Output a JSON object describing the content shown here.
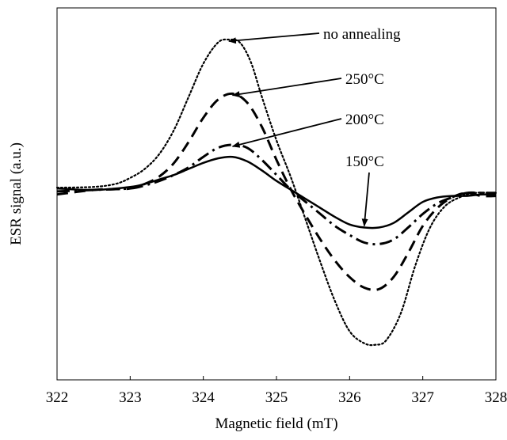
{
  "chart_data": {
    "type": "line",
    "title": "",
    "xlabel": "Magnetic field (mT)",
    "ylabel": "ESR signal (a.u.)",
    "xlim": [
      322,
      328
    ],
    "ylim": [
      -1.0,
      1.0
    ],
    "x_ticks": [
      "322",
      "323",
      "324",
      "325",
      "326",
      "327",
      "328"
    ],
    "y_ticks": [],
    "grid": false,
    "legend": "annotations with arrows (top-right)",
    "series": [
      {
        "name": "no annealing",
        "style": "dotted",
        "x": [
          322.0,
          322.5,
          322.8,
          323.0,
          323.2,
          323.4,
          323.6,
          323.8,
          324.0,
          324.2,
          324.35,
          324.5,
          324.65,
          324.8,
          325.0,
          325.2,
          325.4,
          325.6,
          325.8,
          326.0,
          326.2,
          326.35,
          326.5,
          326.7,
          326.9,
          327.1,
          327.3,
          327.5,
          327.7,
          328.0
        ],
        "y": [
          0.015,
          0.02,
          0.04,
          0.08,
          0.14,
          0.24,
          0.4,
          0.62,
          0.84,
          0.98,
          1.0,
          0.98,
          0.85,
          0.62,
          0.33,
          0.08,
          -0.2,
          -0.48,
          -0.74,
          -0.94,
          -1.02,
          -1.03,
          -1.0,
          -0.82,
          -0.5,
          -0.25,
          -0.11,
          -0.05,
          -0.02,
          -0.02
        ]
      },
      {
        "name": "250°C",
        "style": "dashed",
        "x": [
          322.0,
          322.5,
          322.8,
          323.0,
          323.2,
          323.4,
          323.6,
          323.8,
          324.0,
          324.2,
          324.4,
          324.6,
          324.8,
          325.0,
          325.2,
          325.4,
          325.6,
          325.8,
          326.0,
          326.2,
          326.4,
          326.6,
          326.8,
          327.0,
          327.2,
          327.4,
          327.6,
          327.8,
          328.0
        ],
        "y": [
          -0.03,
          0.0,
          0.005,
          0.01,
          0.04,
          0.09,
          0.18,
          0.32,
          0.48,
          0.6,
          0.64,
          0.58,
          0.42,
          0.2,
          0.0,
          -0.17,
          -0.33,
          -0.47,
          -0.58,
          -0.65,
          -0.66,
          -0.58,
          -0.42,
          -0.24,
          -0.12,
          -0.05,
          -0.02,
          -0.04,
          -0.04
        ]
      },
      {
        "name": "200°C",
        "style": "dash-dot",
        "x": [
          322.0,
          322.5,
          323.0,
          323.2,
          323.4,
          323.6,
          323.8,
          324.0,
          324.2,
          324.4,
          324.6,
          324.8,
          325.0,
          325.2,
          325.4,
          325.6,
          325.8,
          326.0,
          326.2,
          326.4,
          326.6,
          326.8,
          327.0,
          327.2,
          327.4,
          327.6,
          327.8,
          328.0
        ],
        "y": [
          -0.01,
          0.0,
          0.01,
          0.03,
          0.06,
          0.1,
          0.15,
          0.22,
          0.28,
          0.3,
          0.28,
          0.2,
          0.1,
          0.0,
          -0.08,
          -0.16,
          -0.24,
          -0.3,
          -0.35,
          -0.36,
          -0.33,
          -0.25,
          -0.16,
          -0.09,
          -0.05,
          -0.02,
          -0.02,
          -0.02
        ]
      },
      {
        "name": "150°C",
        "style": "solid",
        "x": [
          322.0,
          322.5,
          323.0,
          323.2,
          323.4,
          323.6,
          323.8,
          324.0,
          324.2,
          324.4,
          324.6,
          324.8,
          325.0,
          325.2,
          325.4,
          325.6,
          325.8,
          326.0,
          326.2,
          326.4,
          326.6,
          326.8,
          327.0,
          327.2,
          327.4,
          327.6,
          327.8,
          328.0
        ],
        "y": [
          0.01,
          0.0,
          0.02,
          0.04,
          0.07,
          0.1,
          0.14,
          0.18,
          0.21,
          0.22,
          0.19,
          0.13,
          0.06,
          0.0,
          -0.06,
          -0.12,
          -0.18,
          -0.23,
          -0.25,
          -0.25,
          -0.22,
          -0.15,
          -0.08,
          -0.05,
          -0.04,
          -0.04,
          -0.03,
          -0.03
        ]
      }
    ],
    "annotations": [
      {
        "text": "no annealing",
        "target_series": "no annealing",
        "target_x": 324.35,
        "target_y": 1.0
      },
      {
        "text": "250°C",
        "target_series": "250°C",
        "target_x": 324.4,
        "target_y": 0.64
      },
      {
        "text": "200°C",
        "target_series": "200°C",
        "target_x": 324.4,
        "target_y": 0.3
      },
      {
        "text": "150°C",
        "target_series": "150°C",
        "target_x": 326.2,
        "target_y": -0.25
      }
    ]
  }
}
